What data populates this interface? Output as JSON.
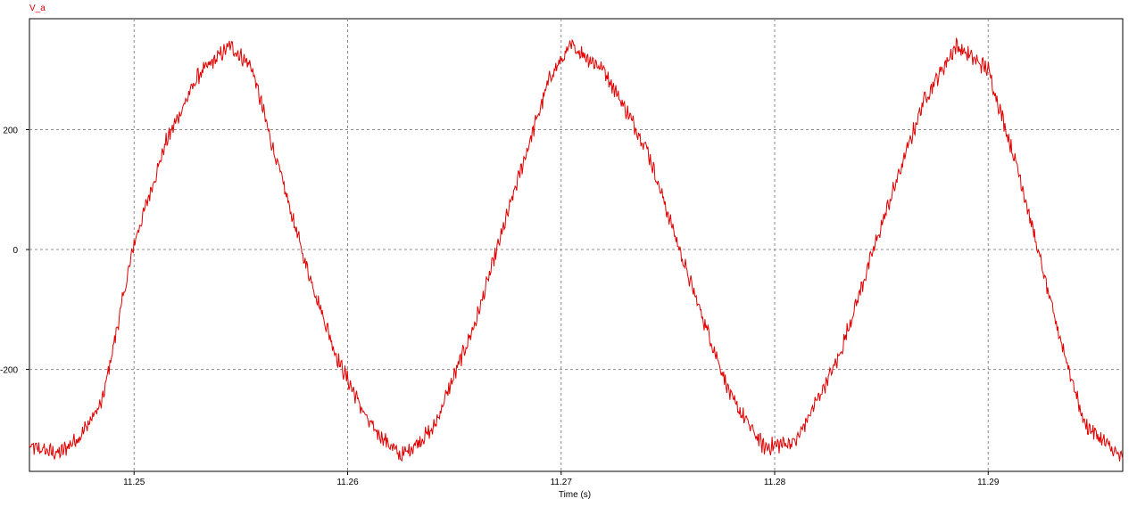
{
  "chart_data": {
    "type": "line",
    "title": "",
    "xlabel": "Time (s)",
    "ylabel": "",
    "xlim": [
      11.2451,
      11.2963
    ],
    "ylim": [
      -370,
      385
    ],
    "x_ticks": [
      11.25,
      11.26,
      11.27,
      11.28,
      11.29
    ],
    "x_tick_labels": [
      "11.25",
      "11.26",
      "11.27",
      "11.28",
      "11.29"
    ],
    "y_ticks": [
      -200,
      0,
      200
    ],
    "y_tick_labels": [
      "-200",
      "0",
      "200"
    ],
    "grid": true,
    "grid_style": "dashed",
    "legend": "top-left",
    "series": [
      {
        "name": "V_a",
        "color": "#e00000",
        "x": [
          11.2451,
          11.2465,
          11.2475,
          11.2485,
          11.25,
          11.2515,
          11.253,
          11.2545,
          11.2555,
          11.2565,
          11.258,
          11.2595,
          11.261,
          11.2625,
          11.264,
          11.266,
          11.268,
          11.2695,
          11.2705,
          11.272,
          11.274,
          11.276,
          11.278,
          11.2795,
          11.281,
          11.283,
          11.285,
          11.287,
          11.2885,
          11.29,
          11.2915,
          11.293,
          11.2945,
          11.2963
        ],
        "y": [
          -330,
          -340,
          -310,
          -255,
          10,
          180,
          290,
          340,
          305,
          170,
          -20,
          -180,
          -290,
          -345,
          -300,
          -120,
          120,
          290,
          340,
          300,
          170,
          -50,
          -250,
          -330,
          -320,
          -180,
          40,
          250,
          340,
          300,
          120,
          -100,
          -290,
          -350
        ]
      }
    ]
  }
}
